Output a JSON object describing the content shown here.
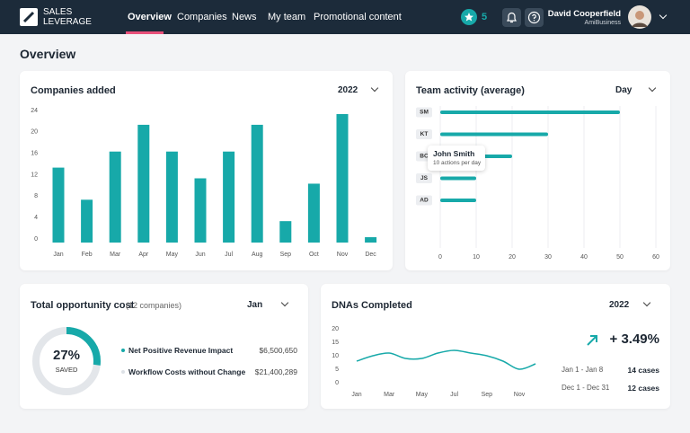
{
  "header": {
    "logo": [
      "SALES",
      "LEVERAGE"
    ],
    "nav": [
      "Overview",
      "Companies",
      "News",
      "My team",
      "Promotional content"
    ],
    "badge": "5",
    "user": {
      "name": "David Cooperfield",
      "company": "AmiBusiness"
    }
  },
  "page_title": "Overview",
  "companies_added": {
    "type": "bar",
    "title": "Companies added",
    "filter": "2022",
    "categories": [
      "Jan",
      "Feb",
      "Mar",
      "Apr",
      "May",
      "Jun",
      "Jul",
      "Aug",
      "Sep",
      "Oct",
      "Nov",
      "Dec"
    ],
    "values": [
      14,
      8,
      17,
      22,
      17,
      12,
      17,
      22,
      4,
      11,
      24,
      1
    ],
    "ylim": [
      0,
      24
    ],
    "yticks": [
      0,
      4,
      8,
      12,
      16,
      20,
      24
    ],
    "color": "#17a9a9"
  },
  "team_activity": {
    "type": "hbar",
    "title": "Team activity (average)",
    "filter": "Day",
    "categories": [
      "SM",
      "KT",
      "BC",
      "JS",
      "AD"
    ],
    "values": [
      50,
      30,
      20,
      10,
      10
    ],
    "xlim": [
      0,
      60
    ],
    "xticks": [
      0,
      10,
      20,
      30,
      40,
      50,
      60
    ],
    "grid": true,
    "color": "#17a9a9",
    "tooltip": {
      "name": "John Smith",
      "text": "10 actions per day"
    }
  },
  "opportunity": {
    "type": "donut",
    "title": "Total opportunity cost",
    "subtitle": "(12 companies)",
    "filter": "Jan",
    "value": 27,
    "value_label": "27%",
    "center_label": "SAVED",
    "color": "#17a9a9",
    "track_color": "#e3e6ea",
    "legend": [
      {
        "name": "Net Positive Revenue Impact",
        "value": "$6,500,650",
        "color": "#17a9a9"
      },
      {
        "name": "Workflow Costs without Change",
        "value": "$21,400,289",
        "color": "#dde1e6"
      }
    ]
  },
  "dnas": {
    "type": "line",
    "title": "DNAs Completed",
    "filter": "2022",
    "categories": [
      "Jan",
      null,
      "Mar",
      null,
      "May",
      null,
      "Jul",
      null,
      "Sep",
      null,
      "Nov",
      null
    ],
    "values": [
      8,
      10,
      11,
      9,
      9,
      11,
      12,
      11,
      10,
      8,
      5,
      7
    ],
    "ylim": [
      0,
      20
    ],
    "yticks": [
      0,
      5,
      10,
      15,
      20
    ],
    "color": "#17a9a9",
    "change": "+ 3.49%",
    "stats": [
      {
        "period": "Jan 1 - Jan 8",
        "cases": "14 cases"
      },
      {
        "period": "Dec 1 - Dec 31",
        "cases": "12 cases"
      }
    ]
  }
}
